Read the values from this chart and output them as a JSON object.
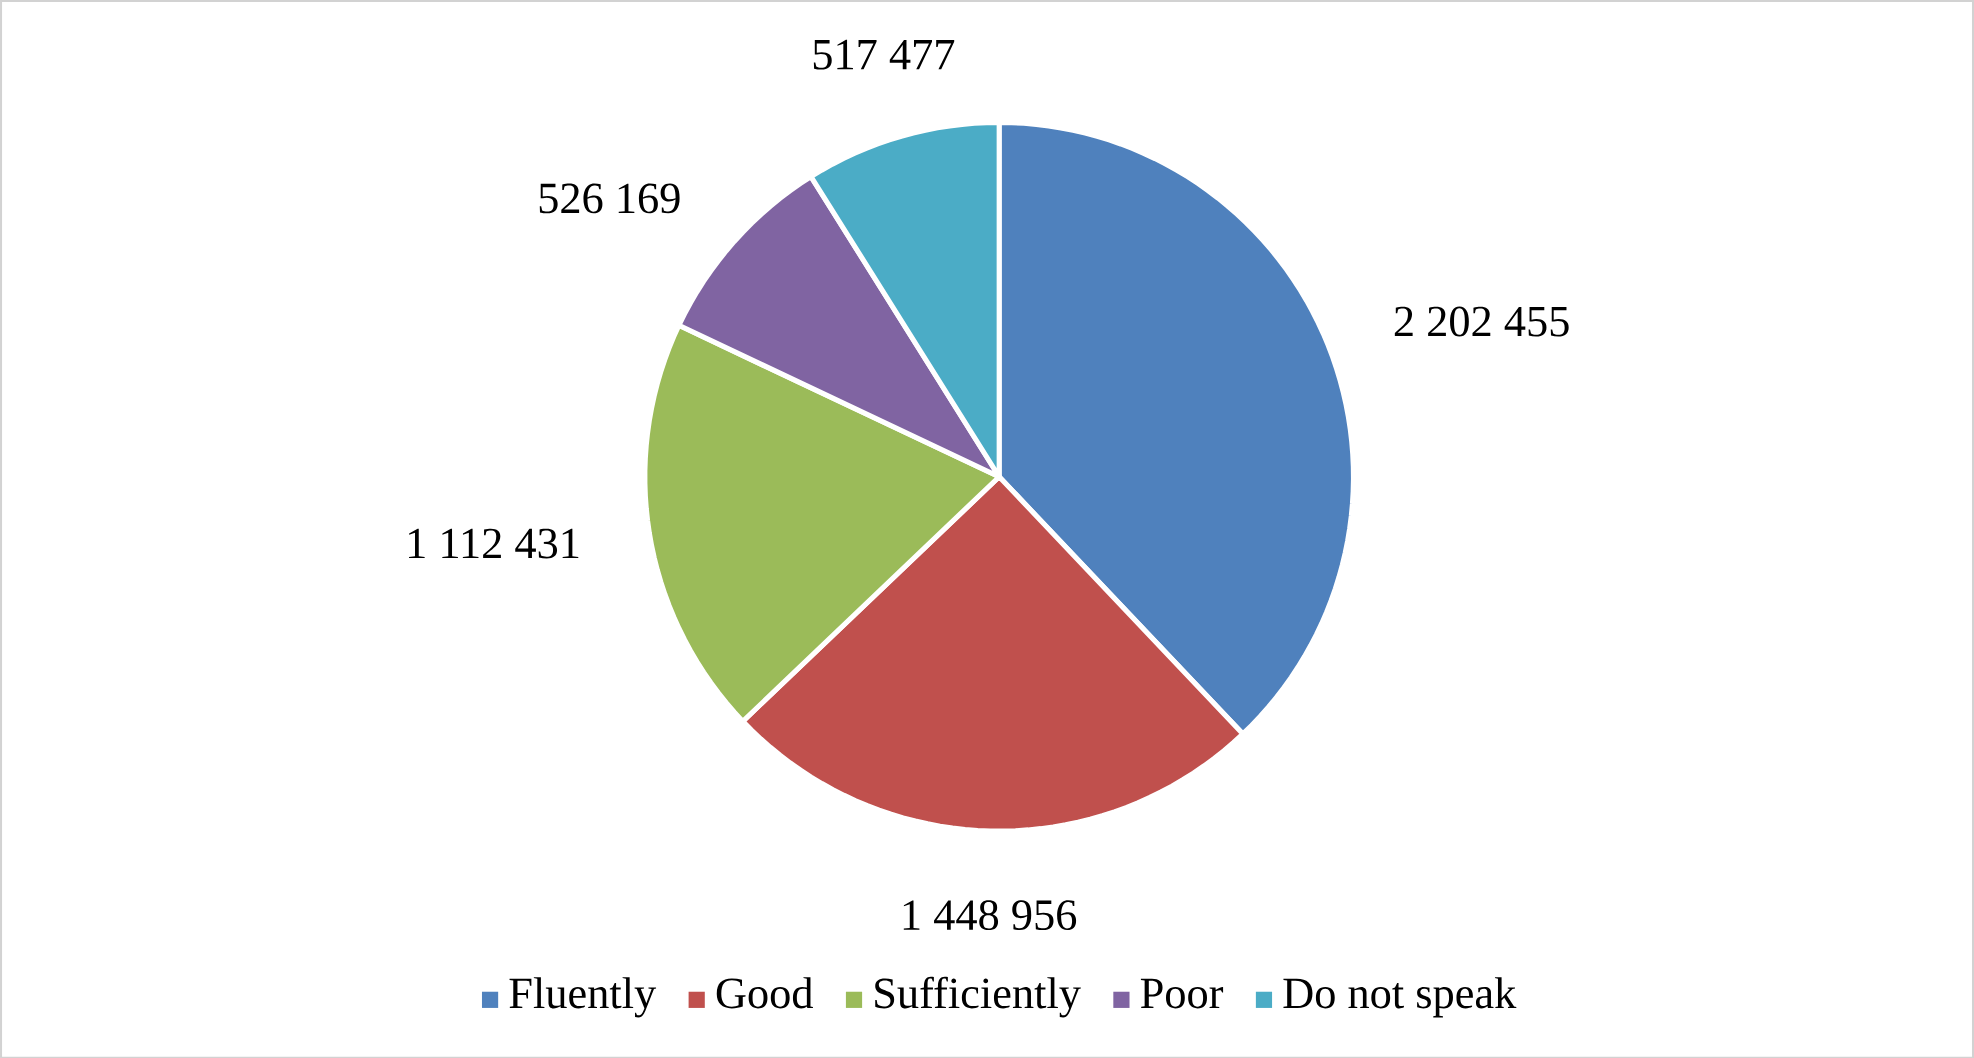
{
  "chart_data": {
    "type": "pie",
    "categories": [
      "Fluently",
      "Good",
      "Sufficiently",
      "Poor",
      "Do not speak"
    ],
    "values": [
      2202455,
      1448956,
      1112431,
      526169,
      517477
    ],
    "value_labels": [
      "2 202 455",
      "1 448 956",
      "1 112 431",
      "526 169",
      "517 477"
    ],
    "colors": [
      "#4f81bd",
      "#c0504d",
      "#9bbb59",
      "#8064a2",
      "#4bacc6"
    ],
    "legend": "bottom"
  }
}
